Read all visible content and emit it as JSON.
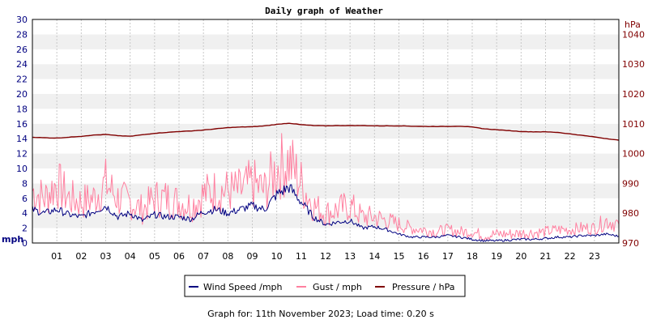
{
  "chart_data": {
    "type": "line",
    "title": "Daily graph of Weather",
    "x_tick_labels": [
      "01",
      "02",
      "03",
      "04",
      "05",
      "06",
      "07",
      "08",
      "09",
      "10",
      "11",
      "12",
      "13",
      "14",
      "15",
      "16",
      "17",
      "18",
      "19",
      "20",
      "21",
      "22",
      "23"
    ],
    "left_axis": {
      "unit_label": "mph",
      "range": [
        0,
        30
      ],
      "tick_labels": [
        "0",
        "2",
        "4",
        "6",
        "8",
        "10",
        "12",
        "14",
        "16",
        "18",
        "20",
        "22",
        "24",
        "26",
        "28",
        "30"
      ]
    },
    "right_axis": {
      "unit_label": "hPa",
      "range": [
        970,
        1045
      ],
      "tick_labels": [
        "970",
        "980",
        "990",
        "1000",
        "1010",
        "1020",
        "1030",
        "1040"
      ]
    },
    "grid": true,
    "legend_placement": "bottom-center",
    "x_hours": [
      0,
      0.5,
      1,
      1.5,
      2,
      2.5,
      3,
      3.5,
      4,
      4.5,
      5,
      5.5,
      6,
      6.5,
      7,
      7.5,
      8,
      8.5,
      9,
      9.5,
      10,
      10.5,
      11,
      11.5,
      12,
      12.5,
      13,
      13.5,
      14,
      14.5,
      15,
      15.5,
      16,
      16.5,
      17,
      17.5,
      18,
      18.5,
      19,
      19.5,
      20,
      20.5,
      21,
      21.5,
      22,
      22.5,
      23,
      23.5,
      24
    ],
    "series": [
      {
        "name": "Wind Speed /mph",
        "axis": "left",
        "color": "#000080",
        "values": [
          4.5,
          4.0,
          4.5,
          3.8,
          3.5,
          4.2,
          5.0,
          3.5,
          4.0,
          3.0,
          3.8,
          3.5,
          3.5,
          3.2,
          4.2,
          4.5,
          4.0,
          4.5,
          5.0,
          4.5,
          6.5,
          7.5,
          5.5,
          3.5,
          2.5,
          2.8,
          3.0,
          2.0,
          2.2,
          1.8,
          1.2,
          0.8,
          0.8,
          0.8,
          1.0,
          0.8,
          0.5,
          0.3,
          0.3,
          0.4,
          0.5,
          0.5,
          0.6,
          0.8,
          0.8,
          1.0,
          1.0,
          1.2,
          0.9
        ]
      },
      {
        "name": "Gust / mph",
        "axis": "left",
        "color": "#ff80a0",
        "values": [
          7,
          6,
          8,
          6,
          5.5,
          6,
          8,
          6,
          5.5,
          4.5,
          6,
          6,
          5.5,
          5,
          6.5,
          7,
          7,
          7,
          8,
          7,
          10,
          11,
          8,
          5,
          4,
          4.5,
          5,
          3.5,
          3.5,
          3,
          2.5,
          2,
          1.8,
          1.5,
          1.8,
          1.5,
          1.5,
          1,
          1.2,
          1.2,
          1.3,
          1.4,
          1.5,
          1.8,
          1.8,
          2,
          2,
          3,
          2.5
        ]
      },
      {
        "name": "Pressure / hPa",
        "axis": "right",
        "color": "#800000",
        "values": [
          1005.5,
          1005.3,
          1005.2,
          1005.5,
          1005.8,
          1006.2,
          1006.4,
          1006.0,
          1005.8,
          1006.3,
          1006.8,
          1007.1,
          1007.4,
          1007.6,
          1007.9,
          1008.3,
          1008.7,
          1008.9,
          1009.0,
          1009.3,
          1009.8,
          1010.2,
          1009.7,
          1009.4,
          1009.3,
          1009.4,
          1009.4,
          1009.4,
          1009.3,
          1009.3,
          1009.3,
          1009.2,
          1009.1,
          1009.1,
          1009.1,
          1009.2,
          1008.9,
          1008.3,
          1008.0,
          1007.7,
          1007.4,
          1007.3,
          1007.3,
          1007.1,
          1006.6,
          1006.1,
          1005.6,
          1005.0,
          1004.5
        ]
      }
    ]
  },
  "footer": {
    "caption": "Graph for: 11th November 2023; Load time: 0.20 s"
  }
}
